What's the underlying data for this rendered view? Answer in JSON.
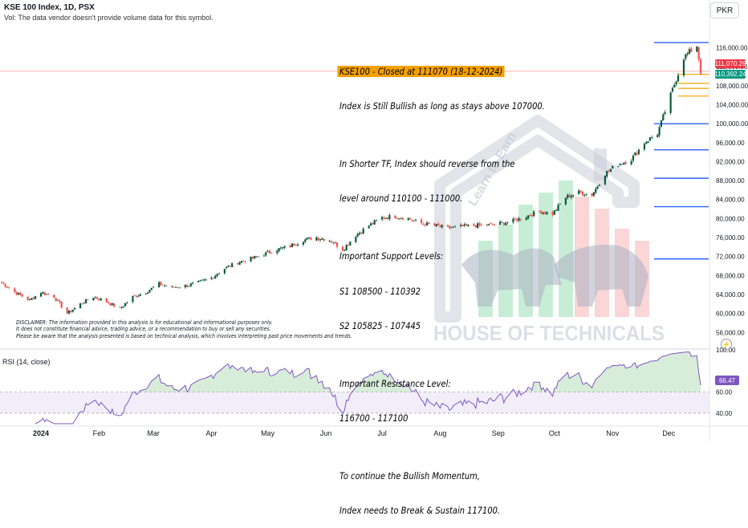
{
  "header": {
    "title": "KSE 100 Index, 1D, PSX",
    "vol_note": "Vol: The data vendor doesn't provide volume data for this symbol."
  },
  "currency_button": "PKR",
  "analysis": {
    "headline": "KSE100 - Closed at 111070 (18-12-2024)",
    "lines": [
      "Index is Still Bullish as long as stays above 107000.",
      "",
      "In Shorter TF, Index should reverse from the",
      "level around 110100 - 111000.",
      "",
      "Important Support Levels:",
      "S1 108500 - 110392",
      "S2 105825 - 107445",
      "",
      "Important Resistance Level:",
      "116700 - 117100",
      "",
      "To continue the Bullish Momentum,",
      "Index needs to Break & Sustain 117100."
    ]
  },
  "disclaimer": [
    "DISCLAIMER: The information provided in this analysis is for educational and informational purposes only.",
    "It does not constitute financial advice, trading advice, or a recommendation to buy or sell any securities.",
    "Please be aware that the analysis presented is based on technical analysis, which involves interpreting past price movements and trends."
  ],
  "watermark": {
    "brand": "HOUSE OF TECHNICALS",
    "tagline": "Learn to Earn"
  },
  "price_badges": {
    "current": "111,070.29",
    "support": "110,392.24"
  },
  "rsi": {
    "label": "RSI (14, close)",
    "value_badge": "66.47",
    "ticks": [
      "100.00",
      "60.00",
      "40.00"
    ]
  },
  "colors": {
    "up": "#26a69a",
    "up_dark": "#0b5b3a",
    "down": "#ef5350",
    "rsi_line": "#7e57c2",
    "support_level": "#f5a000",
    "major_level": "#2962ff",
    "current_price": "#f23645",
    "support_badge": "#089981"
  },
  "icons": [
    "lightning-icon"
  ],
  "chart_data": {
    "type": "candlestick",
    "symbol": "KSE 100 Index",
    "interval": "1D",
    "currency": "PKR",
    "y_ticks": [
      56000,
      60000,
      64000,
      68000,
      72000,
      76000,
      80000,
      84000,
      88000,
      92000,
      96000,
      100000,
      104000,
      108000,
      112000,
      116000
    ],
    "y_tick_labels": [
      "56,000.00",
      "60,000.00",
      "64,000.00",
      "68,000.00",
      "72,000.00",
      "76,000.00",
      "80,000.00",
      "84,000.00",
      "88,000.00",
      "92,000.00",
      "96,000.00",
      "100,000.00",
      "104,000.00",
      "108,000.00",
      "112,000.00",
      "116,000.00"
    ],
    "ylim": [
      53000,
      121000
    ],
    "x_labels": [
      "2024",
      "Feb",
      "Mar",
      "Apr",
      "May",
      "Jun",
      "Jul",
      "Aug",
      "Sep",
      "Oct",
      "Nov",
      "Dec"
    ],
    "close_path": [
      [
        "2023-12-11",
        66500
      ],
      [
        "2023-12-18",
        64500
      ],
      [
        "2023-12-26",
        62800
      ],
      [
        "2024-01-01",
        64500
      ],
      [
        "2024-01-08",
        63500
      ],
      [
        "2024-01-15",
        60000
      ],
      [
        "2024-01-22",
        62000
      ],
      [
        "2024-01-29",
        63500
      ],
      [
        "2024-02-05",
        62500
      ],
      [
        "2024-02-12",
        61000
      ],
      [
        "2024-02-19",
        63500
      ],
      [
        "2024-02-26",
        64500
      ],
      [
        "2024-03-04",
        66200
      ],
      [
        "2024-03-11",
        65500
      ],
      [
        "2024-03-18",
        65800
      ],
      [
        "2024-03-25",
        66500
      ],
      [
        "2024-04-01",
        67500
      ],
      [
        "2024-04-08",
        69500
      ],
      [
        "2024-04-15",
        70800
      ],
      [
        "2024-04-22",
        71500
      ],
      [
        "2024-04-29",
        72500
      ],
      [
        "2024-05-06",
        73500
      ],
      [
        "2024-05-13",
        74200
      ],
      [
        "2024-05-20",
        75500
      ],
      [
        "2024-05-27",
        76000
      ],
      [
        "2024-06-03",
        75500
      ],
      [
        "2024-06-10",
        73500
      ],
      [
        "2024-06-17",
        76500
      ],
      [
        "2024-06-24",
        78500
      ],
      [
        "2024-07-01",
        80200
      ],
      [
        "2024-07-08",
        80500
      ],
      [
        "2024-07-15",
        80000
      ],
      [
        "2024-07-22",
        79000
      ],
      [
        "2024-07-29",
        78500
      ],
      [
        "2024-08-05",
        78000
      ],
      [
        "2024-08-12",
        78300
      ],
      [
        "2024-08-19",
        78500
      ],
      [
        "2024-08-26",
        78600
      ],
      [
        "2024-09-02",
        79000
      ],
      [
        "2024-09-09",
        79500
      ],
      [
        "2024-09-16",
        80500
      ],
      [
        "2024-09-23",
        81500
      ],
      [
        "2024-09-30",
        81000
      ],
      [
        "2024-10-07",
        84500
      ],
      [
        "2024-10-14",
        85500
      ],
      [
        "2024-10-21",
        85000
      ],
      [
        "2024-10-28",
        89500
      ],
      [
        "2024-11-04",
        91500
      ],
      [
        "2024-11-11",
        92500
      ],
      [
        "2024-11-18",
        96000
      ],
      [
        "2024-11-25",
        98000
      ],
      [
        "2024-12-02",
        106000
      ],
      [
        "2024-12-09",
        114000
      ],
      [
        "2024-12-16",
        116500
      ],
      [
        "2024-12-18",
        111070
      ]
    ],
    "horizontal_levels": [
      {
        "value": 117100,
        "kind": "resistance"
      },
      {
        "value": 111070,
        "kind": "current"
      },
      {
        "value": 110392,
        "kind": "support"
      },
      {
        "value": 108500,
        "kind": "support"
      },
      {
        "value": 107445,
        "kind": "support"
      },
      {
        "value": 105825,
        "kind": "support"
      },
      {
        "value": 100000,
        "kind": "major"
      },
      {
        "value": 94500,
        "kind": "major"
      },
      {
        "value": 88500,
        "kind": "major"
      },
      {
        "value": 82500,
        "kind": "major"
      },
      {
        "value": 71500,
        "kind": "major"
      }
    ],
    "rsi": {
      "name": "RSI (14, close)",
      "period": 14,
      "ylim": [
        30,
        100
      ],
      "band": [
        40,
        60
      ],
      "last": 66.47
    }
  }
}
